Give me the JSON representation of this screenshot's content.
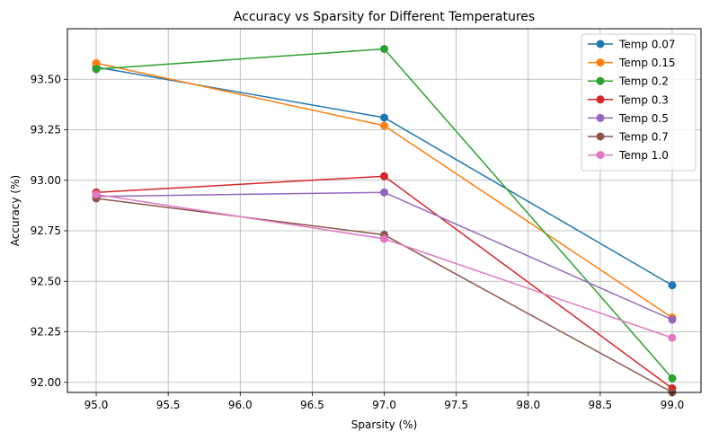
{
  "chart_data": {
    "type": "line",
    "title": "Accuracy vs Sparsity for Different Temperatures",
    "xlabel": "Sparsity (%)",
    "ylabel": "Accuracy (%)",
    "x": [
      95.0,
      97.0,
      99.0
    ],
    "xlim": [
      94.8,
      99.2
    ],
    "ylim": [
      91.95,
      93.75
    ],
    "xticks": [
      "95.0",
      "95.5",
      "96.0",
      "96.5",
      "97.0",
      "97.5",
      "98.0",
      "98.5",
      "99.0"
    ],
    "yticks": [
      "92.00",
      "92.25",
      "92.50",
      "92.75",
      "93.00",
      "93.25",
      "93.50"
    ],
    "grid": true,
    "legend_position": "top-right",
    "series": [
      {
        "name": "Temp 0.07",
        "color": "#1f77b4",
        "values": [
          93.56,
          93.31,
          92.48
        ]
      },
      {
        "name": "Temp 0.15",
        "color": "#ff7f0e",
        "values": [
          93.58,
          93.27,
          92.32
        ]
      },
      {
        "name": "Temp 0.2",
        "color": "#2ca02c",
        "values": [
          93.55,
          93.65,
          92.02
        ]
      },
      {
        "name": "Temp 0.3",
        "color": "#d62728",
        "values": [
          92.94,
          93.02,
          91.97
        ]
      },
      {
        "name": "Temp 0.5",
        "color": "#9467bd",
        "values": [
          92.92,
          92.94,
          92.31
        ]
      },
      {
        "name": "Temp 0.7",
        "color": "#8c564b",
        "values": [
          92.91,
          92.73,
          91.95
        ]
      },
      {
        "name": "Temp 1.0",
        "color": "#e377c2",
        "values": [
          92.93,
          92.71,
          92.22
        ]
      }
    ]
  }
}
